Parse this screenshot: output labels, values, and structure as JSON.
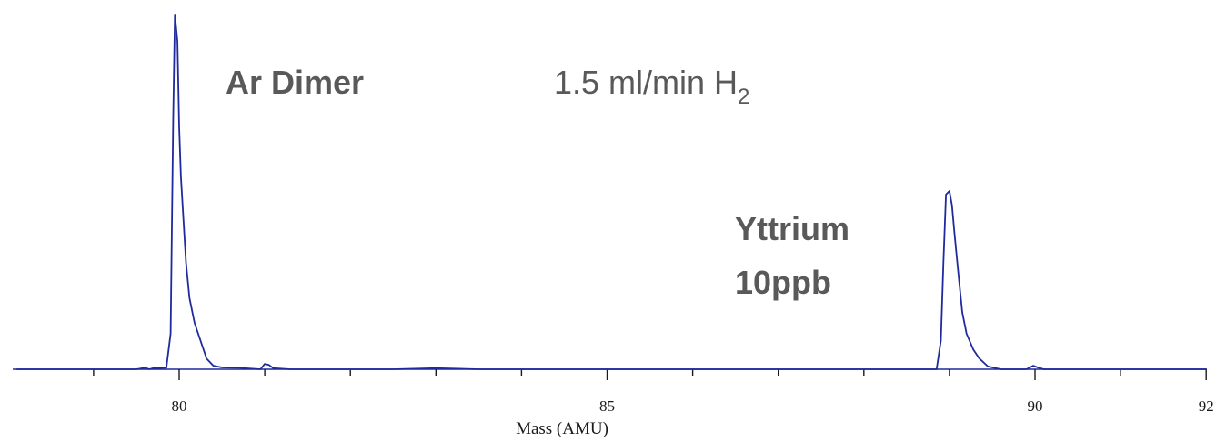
{
  "chart_data": {
    "type": "line",
    "xlabel": "Mass (AMU)",
    "ylabel": "",
    "title": "",
    "xlim": [
      78.1,
      92
    ],
    "ylim": [
      0,
      100
    ],
    "x_ticks": [
      {
        "value": 80,
        "label": "80"
      },
      {
        "value": 85,
        "label": "85"
      },
      {
        "value": 90,
        "label": "90"
      },
      {
        "value": 92,
        "label": "92"
      }
    ],
    "x_minor_ticks": [
      79,
      81,
      82,
      83,
      84,
      86,
      87,
      88,
      89,
      91
    ],
    "grid": false,
    "line_color": "#1f2a9c",
    "series": [
      {
        "x": [
          78.1,
          79.5,
          79.6,
          79.65,
          79.7,
          79.85,
          79.9,
          79.93,
          79.95,
          79.98,
          80.0,
          80.02,
          80.05,
          80.08,
          80.12,
          80.18,
          80.25,
          80.32,
          80.4,
          80.5,
          80.7,
          80.95,
          81.0,
          81.05,
          81.1,
          81.3,
          81.6,
          82.0,
          82.5,
          83.0,
          83.5,
          84.0,
          84.5,
          85.0,
          85.5,
          86.0,
          86.5,
          87.0,
          87.5,
          88.0,
          88.5,
          88.85,
          88.9,
          88.93,
          88.96,
          89.0,
          89.03,
          89.06,
          89.1,
          89.15,
          89.2,
          89.28,
          89.35,
          89.45,
          89.6,
          89.9,
          89.98,
          90.02,
          90.1,
          90.5,
          91.0,
          91.5,
          92.0
        ],
        "y": [
          0,
          0,
          0.4,
          0,
          0.3,
          0.4,
          10,
          70,
          99.5,
          92,
          68,
          54,
          42,
          30,
          20,
          13,
          8,
          3,
          1,
          0.5,
          0.4,
          0,
          1.5,
          1.2,
          0.3,
          0,
          0,
          0,
          0,
          0.3,
          0,
          0,
          0,
          0,
          0,
          0,
          0,
          0,
          0,
          0,
          0,
          0,
          8,
          30,
          49,
          50,
          46,
          38,
          28,
          16,
          10,
          5.5,
          3,
          0.8,
          0,
          0,
          1,
          0.6,
          0,
          0,
          0,
          0,
          0
        ]
      }
    ]
  },
  "annotations": {
    "ar_dimer": "Ar Dimer",
    "flow_main": "1.5 ml/min H",
    "flow_sub": "2",
    "yttrium_line1": "Yttrium",
    "yttrium_line2": "10ppb"
  }
}
